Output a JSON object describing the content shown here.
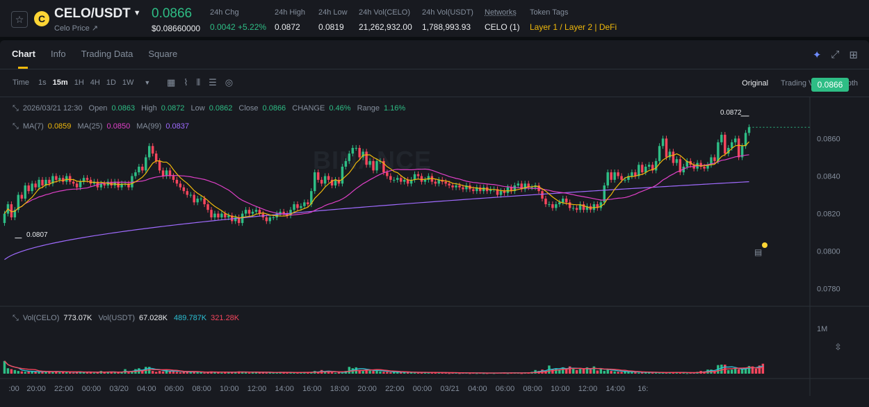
{
  "header": {
    "pair": "CELO/USDT",
    "subtitle": "Celo Price ↗",
    "last_price": "0.0866",
    "last_price_usd": "$0.08660000",
    "stats": [
      {
        "label": "24h Chg",
        "value": "0.0042 +5.22%",
        "tone": "up"
      },
      {
        "label": "24h High",
        "value": "0.0872",
        "tone": ""
      },
      {
        "label": "24h Low",
        "value": "0.0819",
        "tone": ""
      },
      {
        "label": "24h Vol(CELO)",
        "value": "21,262,932.00",
        "tone": ""
      },
      {
        "label": "24h Vol(USDT)",
        "value": "1,788,993.93",
        "tone": ""
      },
      {
        "label": "Networks",
        "value": "CELO (1)",
        "tone": ""
      },
      {
        "label": "Token Tags",
        "value": "Layer 1 / Layer 2 | DeFi",
        "tone": "tag"
      }
    ]
  },
  "tabs": [
    "Chart",
    "Info",
    "Trading Data",
    "Square"
  ],
  "active_tab": "Chart",
  "timeframes": {
    "label": "Time",
    "items": [
      "1s",
      "15m",
      "1H",
      "4H",
      "1D",
      "1W"
    ],
    "active": "15m"
  },
  "views": [
    "Original",
    "Trading View",
    "Depth"
  ],
  "active_view": "Original",
  "ohlc_legend": {
    "datetime": "2026/03/21 12:30",
    "open_label": "Open",
    "open": "0.0863",
    "high_label": "High",
    "high": "0.0872",
    "low_label": "Low",
    "low": "0.0862",
    "close_label": "Close",
    "close": "0.0866",
    "change_label": "CHANGE",
    "change": "0.46%",
    "range_label": "Range",
    "range": "1.16%"
  },
  "ma_legend": {
    "ma7_label": "MA(7)",
    "ma7": "0.0859",
    "ma25_label": "MA(25)",
    "ma25": "0.0850",
    "ma99_label": "MA(99)",
    "ma99": "0.0837"
  },
  "vol_legend": {
    "vol_celo_label": "Vol(CELO)",
    "vol_celo": "773.07K",
    "vol_usdt_label": "Vol(USDT)",
    "vol_usdt": "67.028K",
    "ma1": "489.787K",
    "ma2": "321.28K"
  },
  "current_price_tag": "0.0866",
  "high_marker": "0.0872",
  "low_marker": "0.0807",
  "watermark": "BINANCE",
  "colors": {
    "up": "#2ebd85",
    "down": "#f6465d",
    "ma7": "#f0b90b",
    "ma25": "#e040c8",
    "ma99": "#a06bff",
    "vol_ma": "#2cbfd3",
    "accent": "#fcd535"
  },
  "chart_data": {
    "type": "candlestick",
    "price_axis": {
      "ticks": [
        0.086,
        0.084,
        0.082,
        0.08,
        0.078
      ],
      "labels": [
        "0.0860",
        "0.0840",
        "0.0820",
        "0.0800",
        "0.0780"
      ],
      "range": [
        0.0771,
        0.0882
      ]
    },
    "volume_axis": {
      "ticks": [
        1000000
      ],
      "labels": [
        "1M"
      ],
      "range": [
        0,
        1460000
      ]
    },
    "time_axis_labels": [
      ":00",
      "20:00",
      "22:00",
      "00:00",
      "03/20",
      "04:00",
      "06:00",
      "08:00",
      "10:00",
      "12:00",
      "14:00",
      "16:00",
      "18:00",
      "20:00",
      "22:00",
      "00:00",
      "03/21",
      "04:00",
      "06:00",
      "08:00",
      "10:00",
      "12:00",
      "14:00",
      "16:"
    ],
    "time_axis_bars_per_label": 8,
    "close": [
      0.082,
      0.0825,
      0.0818,
      0.0822,
      0.083,
      0.0828,
      0.0835,
      0.0832,
      0.0836,
      0.0834,
      0.0838,
      0.0835,
      0.0838,
      0.0836,
      0.084,
      0.0838,
      0.0839,
      0.0837,
      0.084,
      0.0837,
      0.0836,
      0.0834,
      0.0837,
      0.0839,
      0.0838,
      0.0836,
      0.0837,
      0.0834,
      0.0836,
      0.0835,
      0.0837,
      0.0835,
      0.0837,
      0.0834,
      0.0836,
      0.0836,
      0.0834,
      0.084,
      0.0842,
      0.0845,
      0.0843,
      0.085,
      0.0856,
      0.0852,
      0.0848,
      0.0843,
      0.084,
      0.0843,
      0.084,
      0.0838,
      0.0836,
      0.0834,
      0.0832,
      0.083,
      0.083,
      0.0826,
      0.0828,
      0.0828,
      0.0825,
      0.0822,
      0.0818,
      0.082,
      0.0818,
      0.082,
      0.0818,
      0.0819,
      0.0816,
      0.0818,
      0.0815,
      0.082,
      0.0822,
      0.082,
      0.0821,
      0.0822,
      0.082,
      0.0818,
      0.0816,
      0.0818,
      0.0818,
      0.082,
      0.0821,
      0.082,
      0.0819,
      0.0822,
      0.0825,
      0.0823,
      0.0824,
      0.0826,
      0.0825,
      0.0832,
      0.0842,
      0.0838,
      0.0836,
      0.084,
      0.0838,
      0.0835,
      0.0838,
      0.0836,
      0.0845,
      0.0848,
      0.0852,
      0.0855,
      0.0855,
      0.085,
      0.0853,
      0.0846,
      0.0848,
      0.0843,
      0.0848,
      0.0848,
      0.0842,
      0.084,
      0.0838,
      0.0838,
      0.0839,
      0.0837,
      0.0838,
      0.0836,
      0.0838,
      0.0841,
      0.084,
      0.0837,
      0.0838,
      0.084,
      0.0837,
      0.0836,
      0.0838,
      0.0837,
      0.0836,
      0.0835,
      0.0834,
      0.0835,
      0.0834,
      0.0833,
      0.0835,
      0.0833,
      0.0832,
      0.0834,
      0.0832,
      0.0834,
      0.0832,
      0.0833,
      0.0833,
      0.083,
      0.0832,
      0.0831,
      0.0834,
      0.0832,
      0.0835,
      0.0836,
      0.0833,
      0.0836,
      0.0834,
      0.0834,
      0.0835,
      0.0832,
      0.0828,
      0.0825,
      0.0825,
      0.0823,
      0.0825,
      0.0826,
      0.0828,
      0.0826,
      0.0823,
      0.0823,
      0.0822,
      0.0825,
      0.0822,
      0.0824,
      0.0822,
      0.0825,
      0.0823,
      0.0826,
      0.0835,
      0.0842,
      0.0838,
      0.0842,
      0.084,
      0.0838,
      0.0838,
      0.084,
      0.0842,
      0.084,
      0.0846,
      0.0842,
      0.0845,
      0.0846,
      0.0843,
      0.0848,
      0.0856,
      0.086,
      0.085,
      0.0853,
      0.0847,
      0.0849,
      0.0842,
      0.0845,
      0.0848,
      0.0846,
      0.0844,
      0.0847,
      0.0845,
      0.0844,
      0.0846,
      0.085,
      0.0848,
      0.0858,
      0.0862,
      0.0852,
      0.0855,
      0.0858,
      0.086,
      0.085,
      0.0856,
      0.0863,
      0.0866
    ],
    "volume_k": [
      280,
      120,
      100,
      80,
      60,
      50,
      40,
      50,
      60,
      40,
      30,
      40,
      50,
      60,
      40,
      50,
      30,
      40,
      50,
      30,
      20,
      40,
      50,
      30,
      40,
      30,
      20,
      30,
      60,
      40,
      30,
      40,
      30,
      30,
      40,
      100,
      30,
      60,
      100,
      120,
      80,
      150,
      150,
      60,
      40,
      60,
      50,
      80,
      60,
      50,
      40,
      30,
      50,
      40,
      30,
      50,
      30,
      40,
      20,
      30,
      50,
      40,
      30,
      20,
      40,
      30,
      30,
      40,
      50,
      40,
      30,
      20,
      30,
      40,
      30,
      30,
      20,
      30,
      20,
      30,
      40,
      30,
      20,
      30,
      20,
      20,
      30,
      40,
      30,
      30,
      60,
      40,
      80,
      40,
      60,
      30,
      20,
      30,
      20,
      60,
      150,
      120,
      140,
      80,
      60,
      90,
      70,
      60,
      80,
      50,
      40,
      40,
      30,
      40,
      30,
      30,
      40,
      30,
      30,
      20,
      20,
      30,
      30,
      20,
      30,
      20,
      20,
      30,
      20,
      10,
      20,
      20,
      10,
      20,
      20,
      10,
      20,
      10,
      20,
      10,
      10,
      20,
      10,
      20,
      20,
      20,
      10,
      20,
      20,
      20,
      10,
      20,
      20,
      40,
      80,
      60,
      90,
      60,
      180,
      100,
      120,
      90,
      140,
      100,
      160,
      120,
      80,
      100,
      100,
      140,
      90,
      160,
      70,
      110,
      60,
      100,
      60,
      50,
      40,
      40,
      60,
      40,
      30,
      30,
      20,
      40,
      30,
      30,
      20,
      20,
      20,
      30,
      20,
      30,
      30,
      30,
      30,
      20,
      10,
      20,
      20,
      40,
      60,
      50,
      90,
      90,
      60,
      190,
      200,
      200,
      80,
      90,
      120,
      100,
      110,
      120,
      170,
      160,
      110,
      180,
      220
    ]
  }
}
